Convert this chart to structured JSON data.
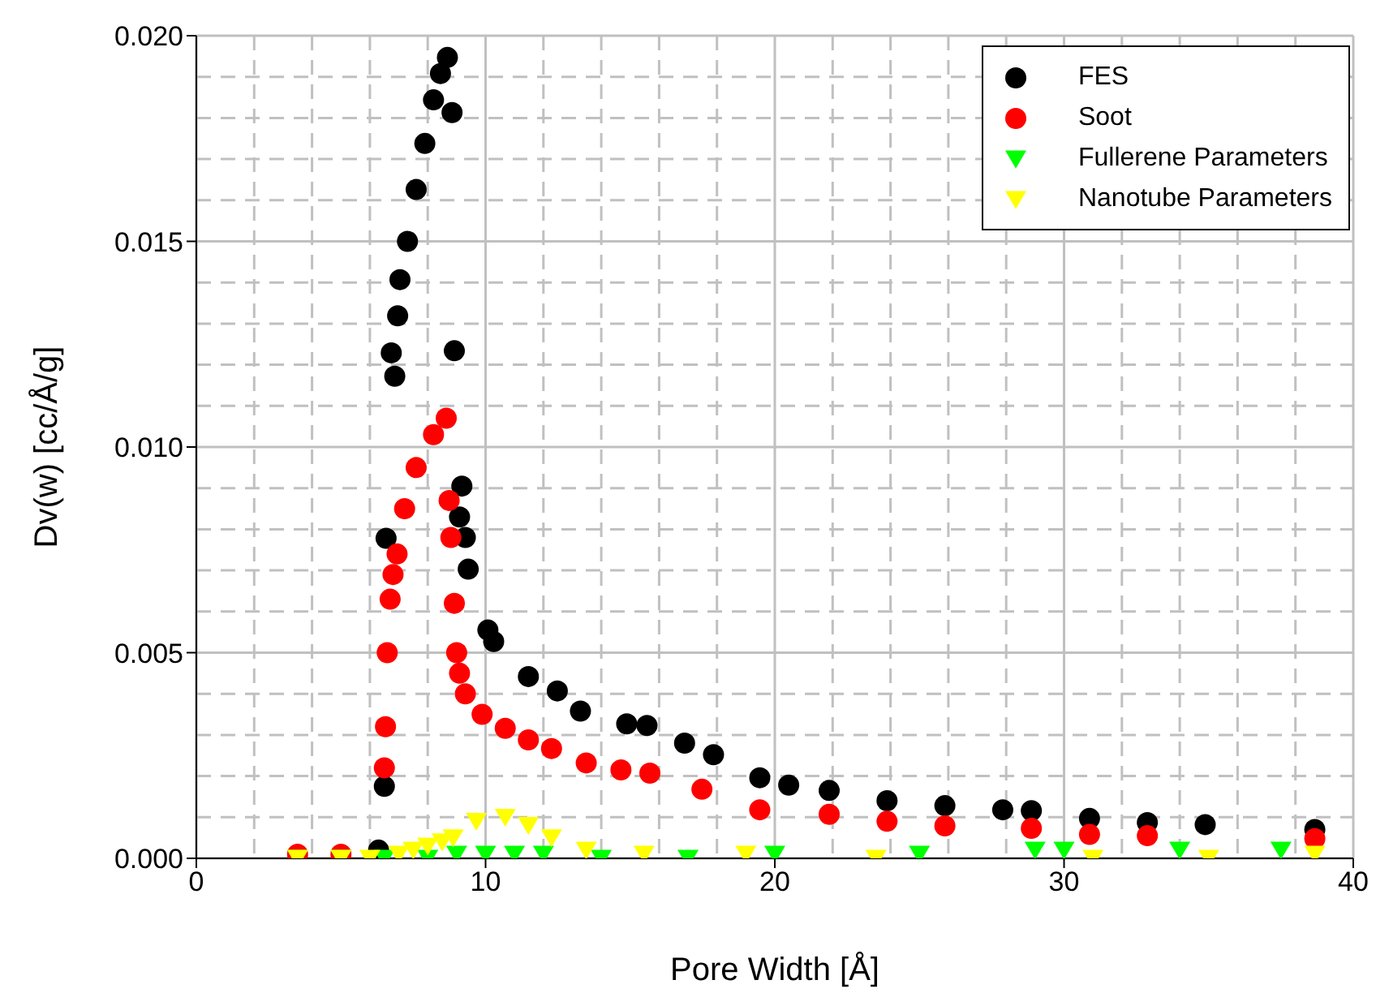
{
  "chart_data": {
    "type": "scatter",
    "xlabel": "Pore Width [Å]",
    "ylabel": "Dv(w)  [cc/Å/g]",
    "xlim": [
      0,
      40
    ],
    "xticks": [
      0,
      10,
      20,
      30,
      40
    ],
    "ylim": [
      0,
      0.02
    ],
    "yticks": [
      {
        "value": 0,
        "label": "0.000"
      },
      {
        "value": 0.005,
        "label": "0.005"
      },
      {
        "value": 0.01,
        "label": "0.010"
      },
      {
        "value": 0.015,
        "label": "0.015"
      },
      {
        "value": 0.02,
        "label": "0.020"
      }
    ],
    "grid": true,
    "legend": "top right",
    "marker": "circle",
    "series": [
      {
        "name": "FES",
        "color": "#000000",
        "x": [
          6.3,
          6.5,
          6.56,
          6.74,
          6.86,
          6.96,
          7.04,
          7.3,
          7.6,
          7.9,
          8.2,
          8.44,
          8.68,
          8.84,
          8.92,
          9.1,
          9.18,
          9.3,
          9.4,
          10.08,
          10.28,
          11.48,
          12.48,
          13.28,
          14.88,
          15.58,
          16.88,
          17.88,
          19.48,
          20.48,
          21.88,
          23.88,
          25.88,
          27.88,
          28.87,
          30.88,
          32.88,
          34.88,
          38.67
        ],
        "values": [
          0.0002,
          0.00175,
          0.00778,
          0.01229,
          0.01172,
          0.01319,
          0.01407,
          0.015,
          0.01626,
          0.01738,
          0.01844,
          0.01908,
          0.01947,
          0.01813,
          0.01234,
          0.0083,
          0.00905,
          0.0078,
          0.00703,
          0.00555,
          0.00527,
          0.00442,
          0.00407,
          0.00358,
          0.00327,
          0.00323,
          0.0028,
          0.00252,
          0.00196,
          0.00178,
          0.00165,
          0.0014,
          0.00128,
          0.00118,
          0.00116,
          0.00097,
          0.00087,
          0.00082,
          0.0007
        ]
      },
      {
        "name": "Soot",
        "color": "#ff0000",
        "x": [
          3.5,
          5,
          6.5,
          6.54,
          6.6,
          6.7,
          6.8,
          6.94,
          7.2,
          7.6,
          8.2,
          8.64,
          8.74,
          8.8,
          8.92,
          9,
          9.1,
          9.3,
          9.88,
          10.68,
          11.48,
          12.28,
          13.48,
          14.68,
          15.68,
          17.48,
          19.48,
          21.88,
          23.88,
          25.88,
          28.87,
          30.88,
          32.88,
          38.67
        ],
        "values": [
          0.0001,
          0.0001,
          0.0022,
          0.0032,
          0.005,
          0.0063,
          0.0069,
          0.0074,
          0.0085,
          0.0095,
          0.0103,
          0.0107,
          0.0087,
          0.0078,
          0.0062,
          0.005,
          0.0045,
          0.004,
          0.0035,
          0.00316,
          0.00288,
          0.00267,
          0.00232,
          0.00215,
          0.00207,
          0.00168,
          0.00118,
          0.00107,
          0.0009,
          0.00079,
          0.00073,
          0.00058,
          0.00055,
          0.00048
        ]
      },
      {
        "name": "Fullerene Parameters",
        "color": "#00ff00",
        "marker": "triangle",
        "x": [
          3.5,
          5,
          6.5,
          8,
          9,
          10,
          11,
          12,
          14,
          17,
          20,
          25,
          29,
          30,
          34,
          37.5
        ],
        "values": [
          0,
          0,
          0,
          0,
          0.0001,
          0.0001,
          0.0001,
          0.0001,
          0,
          0,
          0.0001,
          0.0001,
          0.0002,
          0.0002,
          0.0002,
          0.0002
        ]
      },
      {
        "name": "Nanotube Parameters",
        "color": "#ffff00",
        "marker": "triangle",
        "x": [
          3.5,
          5,
          6,
          7,
          7.5,
          8,
          8.5,
          8.88,
          9.68,
          10.68,
          11.48,
          12.28,
          13.48,
          15.48,
          19,
          23.5,
          31,
          35,
          38.67
        ],
        "values": [
          0,
          0,
          0,
          0.0001,
          0.0002,
          0.0003,
          0.0004,
          0.0005,
          0.0009,
          0.001,
          0.0008,
          0.0005,
          0.0002,
          0.0001,
          0.0001,
          0,
          0,
          0,
          0.0001
        ]
      }
    ]
  }
}
